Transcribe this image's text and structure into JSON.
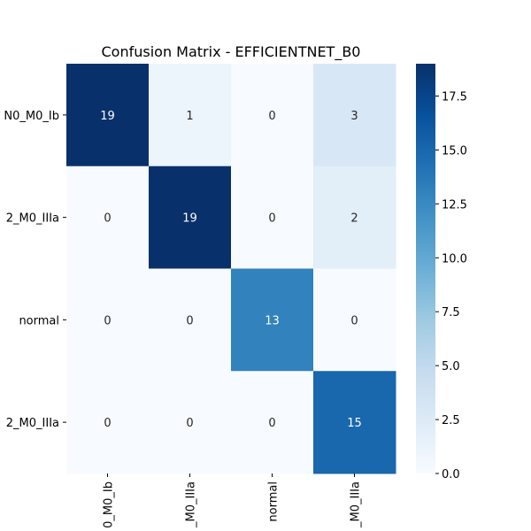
{
  "chart_data": {
    "type": "heatmap",
    "title": "Confusion Matrix - EFFICIENTNET_B0",
    "row_labels": [
      "N0_M0_Ib",
      "2_M0_IIIa",
      "normal",
      "2_M0_IIIa"
    ],
    "col_labels": [
      "0_M0_Ib",
      "_M0_IIIa",
      "normal",
      "_M0_IIIa"
    ],
    "values": [
      [
        19,
        1,
        0,
        3
      ],
      [
        0,
        19,
        0,
        2
      ],
      [
        0,
        0,
        13,
        0
      ],
      [
        0,
        0,
        0,
        15
      ]
    ],
    "colormap": "Blues",
    "vmin": 0,
    "vmax": 19,
    "colorbar_ticks": [
      "0.0",
      "2.5",
      "5.0",
      "7.5",
      "10.0",
      "12.5",
      "15.0",
      "17.5"
    ],
    "colorbar_tick_values": [
      0,
      2.5,
      5,
      7.5,
      10,
      12.5,
      15,
      17.5
    ]
  }
}
